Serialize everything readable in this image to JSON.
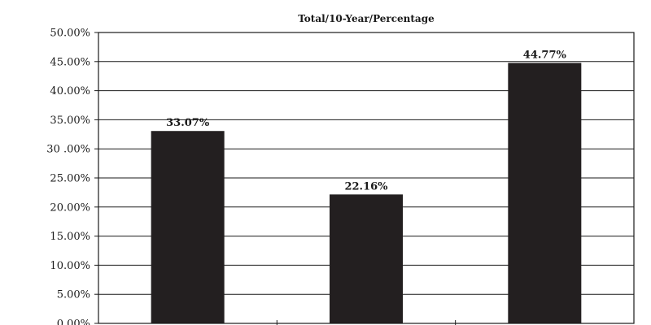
{
  "chart_data": {
    "type": "bar",
    "title": "Total/10-Year/Percentage",
    "xlabel": "",
    "ylabel": "",
    "categories": [
      "",
      "",
      ""
    ],
    "values": [
      33.07,
      22.16,
      44.77
    ],
    "value_labels": [
      "33.07%",
      "22.16%",
      "44.77%"
    ],
    "ylim": [
      0,
      50
    ],
    "yticks": [
      0,
      5,
      10,
      15,
      20,
      25,
      30,
      35,
      40,
      45,
      50
    ],
    "ytick_labels": [
      "0.00%",
      "5.00%",
      "10.00%",
      "15.00%",
      "20.00%",
      "25.00%",
      "30 .00%",
      "35.00%",
      "40.00%",
      "45.00%",
      "50.00%"
    ],
    "grid": true,
    "legend": "none",
    "colors": {
      "bar": "#231f20",
      "grid": "#1a1a1a",
      "background": "#ffffff"
    }
  }
}
